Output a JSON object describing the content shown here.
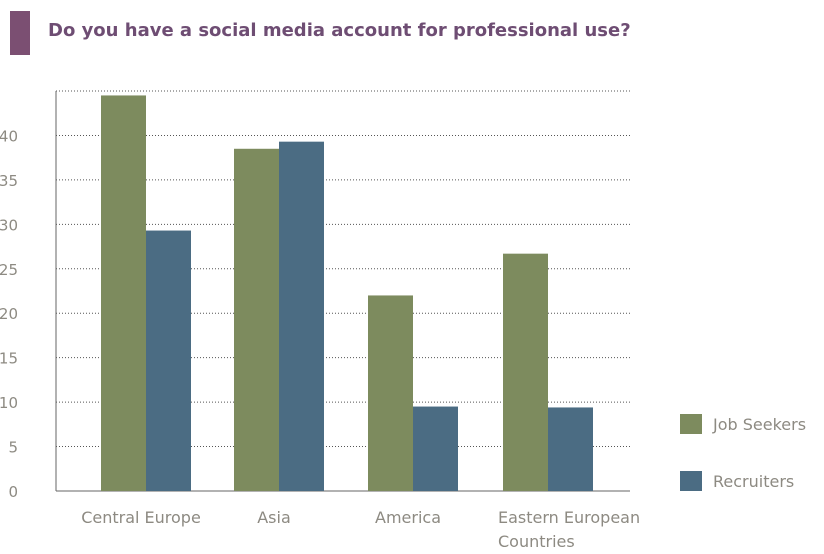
{
  "chart_data": {
    "type": "bar",
    "title": "Do you have a social media account for professional use?",
    "categories": [
      "Central Europe",
      "Asia",
      "America",
      "Eastern European Countries"
    ],
    "series": [
      {
        "name": "Job Seekers",
        "values": [
          44.5,
          38.5,
          22,
          26.7
        ]
      },
      {
        "name": "Recruiters",
        "values": [
          29.3,
          39.3,
          9.5,
          9.4
        ]
      }
    ],
    "ylim": [
      0,
      45
    ],
    "yticks": [
      0,
      5,
      10,
      15,
      20,
      25,
      30,
      35,
      40
    ],
    "grid": true,
    "legend": "right",
    "colors": {
      "Job Seekers": "#7d8b5e",
      "Recruiters": "#4b6c83",
      "title": "#6e4d73",
      "accent": "#7b4f72"
    }
  }
}
